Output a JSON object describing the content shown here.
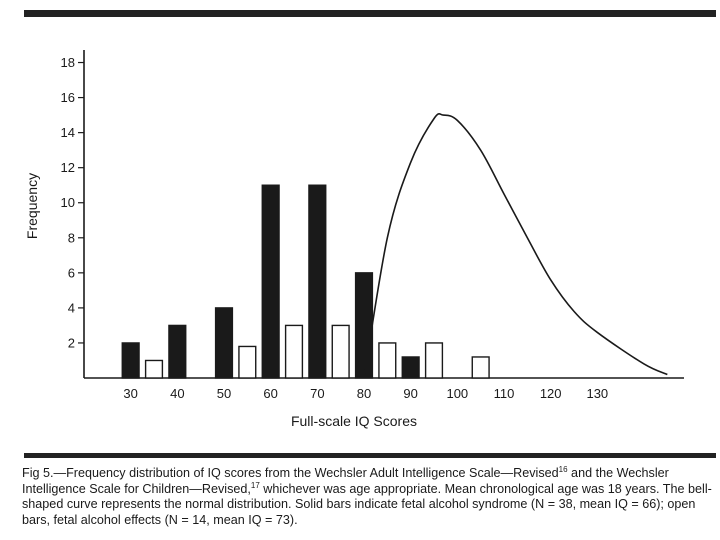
{
  "chart_data": {
    "type": "bar",
    "ylabel": "Frequency",
    "xlabel": "Full-scale IQ Scores",
    "y_ticks": [
      "2",
      "4",
      "6",
      "8",
      "10",
      "12",
      "14",
      "16",
      "18"
    ],
    "x_ticks": [
      "30",
      "40",
      "50",
      "60",
      "70",
      "80",
      "90",
      "100",
      "110",
      "120",
      "130"
    ],
    "ylim": [
      0,
      19
    ],
    "xlim": [
      20,
      146
    ],
    "series": [
      {
        "name": "Solid bars",
        "style": "solid",
        "x": [
          30,
          40,
          50,
          60,
          70,
          80,
          90
        ],
        "values": [
          2,
          3,
          4,
          11,
          11,
          6,
          1.2
        ]
      },
      {
        "name": "Open bars",
        "style": "open",
        "x": [
          35,
          55,
          65,
          75,
          85,
          95,
          105
        ],
        "values": [
          1,
          1.8,
          3,
          3,
          2,
          2,
          1.2
        ]
      }
    ],
    "normal_curve": {
      "x": [
        80,
        85,
        90,
        95,
        97,
        100,
        105,
        110,
        115,
        120,
        125,
        130,
        140,
        145
      ],
      "y": [
        0,
        8,
        12.3,
        14.8,
        15,
        14.7,
        13,
        10.5,
        8,
        5.6,
        3.8,
        2.6,
        0.8,
        0.2
      ]
    },
    "grid": false
  },
  "caption": {
    "part1": "Fig 5.—Frequency distribution of IQ scores from the Wechsler Adult Intelligence Scale—Revised",
    "ref1": "16",
    "part2": " and the Wechsler Intelligence Scale for Children—Revised,",
    "ref2": "17",
    "part3": " whichever was age appropriate. Mean chronological age was 18 years. The bell-shaped curve represents the normal distribution. Solid bars indicate fetal alcohol syndrome (N = 38, mean IQ = 66); open bars, fetal alcohol effects (N = 14, mean IQ = 73)."
  },
  "colors": {
    "ink": "#1a1a1a",
    "bar_fill": "#1a1a1a",
    "open_fill": "#ffffff",
    "rule": "#222222"
  }
}
